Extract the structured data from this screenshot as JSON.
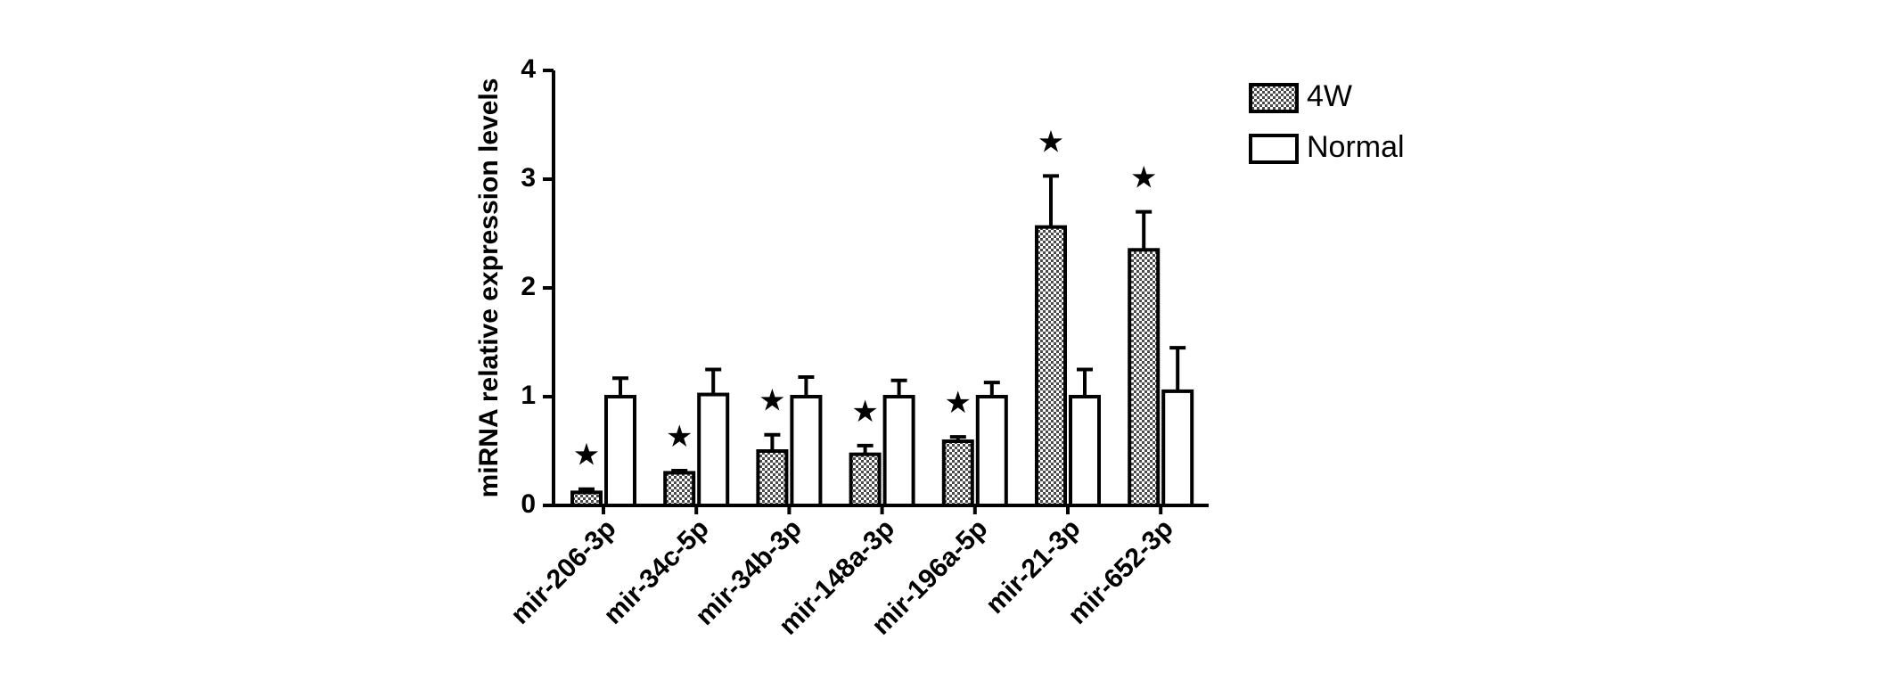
{
  "chart_data": {
    "type": "bar",
    "y_label": "miRNA relative expression levels",
    "categories": [
      "mir-206-3p",
      "mir-34c-5p",
      "mir-34b-3p",
      "mir-148a-3p",
      "mir-196a-5p",
      "mir-21-3p",
      "mir-652-3p"
    ],
    "series": [
      {
        "name": "4W",
        "color": "#4a4a4a",
        "pattern": "checker",
        "values": [
          0.12,
          0.3,
          0.5,
          0.47,
          0.59,
          2.56,
          2.35
        ],
        "errors": [
          0.03,
          0.02,
          0.15,
          0.08,
          0.04,
          0.47,
          0.35
        ],
        "markers": [
          "★",
          "★",
          "★",
          "★",
          "★",
          "★",
          "★"
        ]
      },
      {
        "name": "Normal",
        "color": "#ffffff",
        "values": [
          1.0,
          1.02,
          1.0,
          1.0,
          1.0,
          1.0,
          1.05
        ],
        "errors": [
          0.17,
          0.23,
          0.18,
          0.15,
          0.13,
          0.25,
          0.4
        ]
      }
    ],
    "ylim": [
      0,
      4
    ],
    "yticks": [
      0,
      1,
      2,
      3,
      4
    ],
    "grid": false,
    "legend": "top-right"
  }
}
